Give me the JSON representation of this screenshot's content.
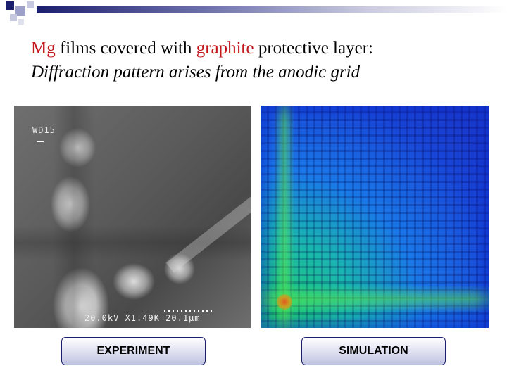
{
  "title": {
    "line1_red_1": "Mg",
    "line1_text_1": " films covered with ",
    "line1_red_2": "graphite",
    "line1_text_2": " protective layer:",
    "line2": "Diffraction pattern arises from the anodic grid"
  },
  "experiment_image": {
    "overlay_top": "WD15",
    "overlay_bottom": "20.0kV X1.49K 20.1µm"
  },
  "labels": {
    "experiment": "EXPERIMENT",
    "simulation": "SIMULATION"
  },
  "colors": {
    "accent_red": "#c0161c",
    "theme_navy": "#1a1f6e"
  }
}
